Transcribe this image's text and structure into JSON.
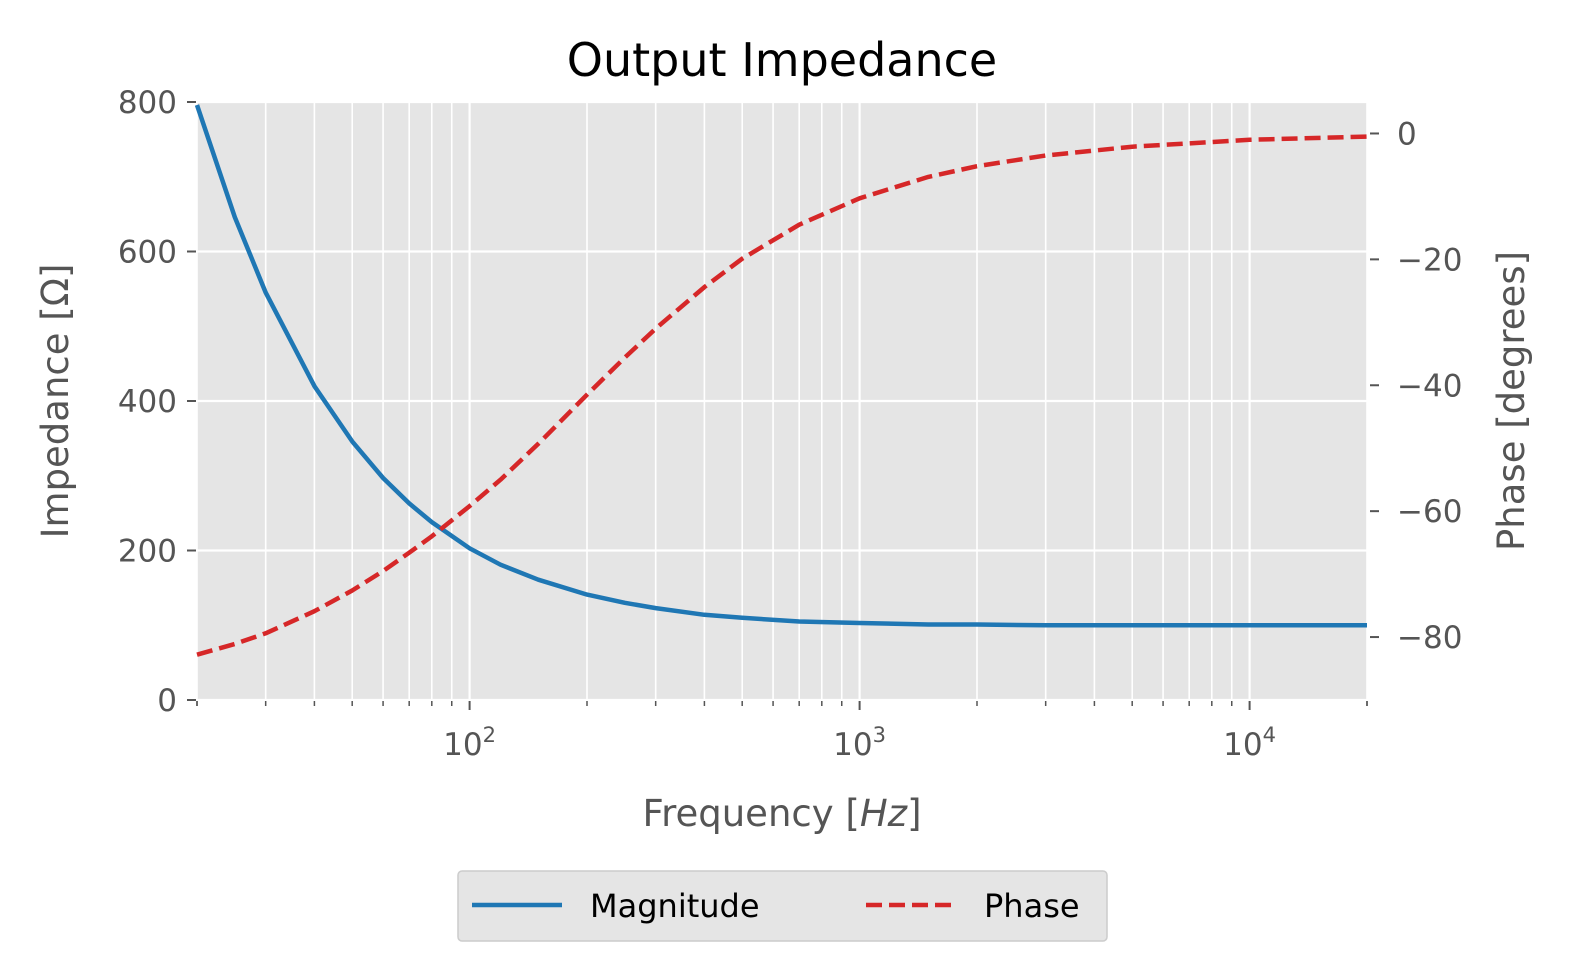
{
  "chart_data": {
    "type": "line",
    "title": "Output Impedance",
    "xlabel": "Frequency [",
    "xlabel_italic": "Hz",
    "xlabel_close": "]",
    "ylabel": "Impedance [Ω]",
    "y2label": "Phase [degrees]",
    "xscale": "log",
    "xlim": [
      20,
      20000
    ],
    "ylim": [
      0,
      800
    ],
    "y2lim": [
      -90,
      5
    ],
    "x_ticks": [
      {
        "value": 100,
        "base": "10",
        "exp": "2"
      },
      {
        "value": 1000,
        "base": "10",
        "exp": "3"
      },
      {
        "value": 10000,
        "base": "10",
        "exp": "4"
      }
    ],
    "y_ticks": [
      "0",
      "200",
      "400",
      "600",
      "800"
    ],
    "y2_ticks": [
      "0",
      "−20",
      "−40",
      "−60",
      "−80"
    ],
    "grid": true,
    "legend_position": "bottom-center",
    "series": [
      {
        "name": "Magnitude",
        "axis": "left",
        "color": "#1f77b4",
        "style": "solid",
        "x": [
          20,
          25,
          30,
          40,
          50,
          60,
          70,
          80,
          100,
          120,
          150,
          200,
          250,
          300,
          400,
          500,
          700,
          1000,
          1500,
          2000,
          3000,
          5000,
          10000,
          20000
        ],
        "values": [
          796,
          646,
          545,
          420,
          346,
          297,
          263,
          238,
          203,
          181,
          161,
          141,
          130,
          123,
          114,
          110,
          105,
          103,
          101,
          101,
          100,
          100,
          100,
          100
        ]
      },
      {
        "name": "Phase",
        "axis": "right",
        "color": "#d62728",
        "style": "dashed",
        "x": [
          20,
          25,
          30,
          40,
          50,
          60,
          70,
          80,
          100,
          120,
          150,
          200,
          250,
          300,
          400,
          500,
          700,
          1000,
          1500,
          2000,
          3000,
          5000,
          10000,
          20000
        ],
        "values": [
          -82.8,
          -81.1,
          -79.4,
          -75.9,
          -72.6,
          -69.5,
          -66.6,
          -64.0,
          -59.2,
          -55.0,
          -49.3,
          -41.5,
          -35.6,
          -31.0,
          -24.4,
          -19.9,
          -14.5,
          -10.3,
          -6.9,
          -5.2,
          -3.5,
          -2.1,
          -1.0,
          -0.5
        ]
      }
    ]
  }
}
